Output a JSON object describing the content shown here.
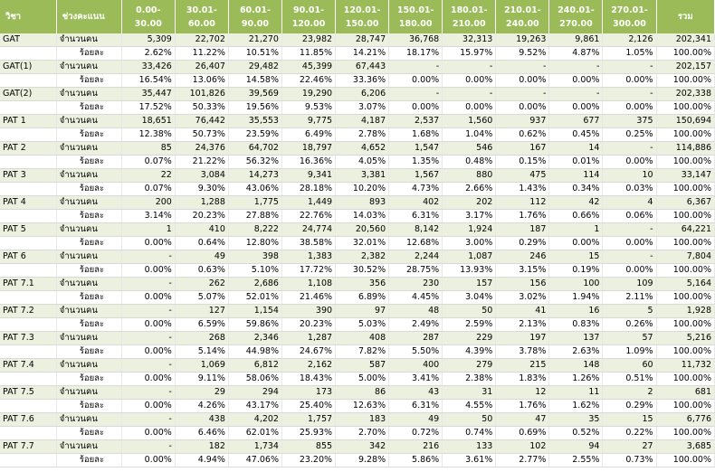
{
  "header": {
    "subject": "วิชา",
    "range": "ช่วงคะแนน",
    "bins": [
      "0.00-30.00",
      "30.01-60.00",
      "60.01-90.00",
      "90.01-\n120.00",
      "120.01-\n150.00",
      "150.01-\n180.00",
      "180.01-\n210.00",
      "210.01-\n240.00",
      "240.01-\n270.00",
      "270.01-\n300.00"
    ],
    "total": "รวม"
  },
  "labels": {
    "count": "จำนวนคน",
    "percent": "ร้อยละ"
  },
  "rows": [
    {
      "subject": "GAT",
      "counts": [
        "5,309",
        "22,702",
        "21,270",
        "23,982",
        "28,747",
        "36,768",
        "32,313",
        "19,263",
        "9,861",
        "2,126"
      ],
      "count_total": "202,341",
      "percents": [
        "2.62%",
        "11.22%",
        "10.51%",
        "11.85%",
        "14.21%",
        "18.17%",
        "15.97%",
        "9.52%",
        "4.87%",
        "1.05%"
      ],
      "percent_total": "100.00%"
    },
    {
      "subject": "GAT(1)",
      "counts": [
        "33,426",
        "26,407",
        "29,482",
        "45,399",
        "67,443",
        "-",
        "-",
        "-",
        "-",
        "-"
      ],
      "count_total": "202,157",
      "percents": [
        "16.54%",
        "13.06%",
        "14.58%",
        "22.46%",
        "33.36%",
        "0.00%",
        "0.00%",
        "0.00%",
        "0.00%",
        "0.00%"
      ],
      "percent_total": "100.00%"
    },
    {
      "subject": "GAT(2)",
      "counts": [
        "35,447",
        "101,826",
        "39,569",
        "19,290",
        "6,206",
        "-",
        "-",
        "-",
        "-",
        "-"
      ],
      "count_total": "202,338",
      "percents": [
        "17.52%",
        "50.33%",
        "19.56%",
        "9.53%",
        "3.07%",
        "0.00%",
        "0.00%",
        "0.00%",
        "0.00%",
        "0.00%"
      ],
      "percent_total": "100.00%"
    },
    {
      "subject": "PAT 1",
      "counts": [
        "18,651",
        "76,442",
        "35,553",
        "9,775",
        "4,187",
        "2,537",
        "1,560",
        "937",
        "677",
        "375"
      ],
      "count_total": "150,694",
      "percents": [
        "12.38%",
        "50.73%",
        "23.59%",
        "6.49%",
        "2.78%",
        "1.68%",
        "1.04%",
        "0.62%",
        "0.45%",
        "0.25%"
      ],
      "percent_total": "100.00%"
    },
    {
      "subject": "PAT 2",
      "counts": [
        "85",
        "24,376",
        "64,702",
        "18,797",
        "4,652",
        "1,547",
        "546",
        "167",
        "14",
        "-"
      ],
      "count_total": "114,886",
      "percents": [
        "0.07%",
        "21.22%",
        "56.32%",
        "16.36%",
        "4.05%",
        "1.35%",
        "0.48%",
        "0.15%",
        "0.01%",
        "0.00%"
      ],
      "percent_total": "100.00%"
    },
    {
      "subject": "PAT 3",
      "counts": [
        "22",
        "3,084",
        "14,273",
        "9,341",
        "3,381",
        "1,567",
        "880",
        "475",
        "114",
        "10"
      ],
      "count_total": "33,147",
      "percents": [
        "0.07%",
        "9.30%",
        "43.06%",
        "28.18%",
        "10.20%",
        "4.73%",
        "2.66%",
        "1.43%",
        "0.34%",
        "0.03%"
      ],
      "percent_total": "100.00%"
    },
    {
      "subject": "PAT 4",
      "counts": [
        "200",
        "1,288",
        "1,775",
        "1,449",
        "893",
        "402",
        "202",
        "112",
        "42",
        "4"
      ],
      "count_total": "6,367",
      "percents": [
        "3.14%",
        "20.23%",
        "27.88%",
        "22.76%",
        "14.03%",
        "6.31%",
        "3.17%",
        "1.76%",
        "0.66%",
        "0.06%"
      ],
      "percent_total": "100.00%"
    },
    {
      "subject": "PAT 5",
      "counts": [
        "1",
        "410",
        "8,222",
        "24,774",
        "20,560",
        "8,142",
        "1,924",
        "187",
        "1",
        "-"
      ],
      "count_total": "64,221",
      "percents": [
        "0.00%",
        "0.64%",
        "12.80%",
        "38.58%",
        "32.01%",
        "12.68%",
        "3.00%",
        "0.29%",
        "0.00%",
        "0.00%"
      ],
      "percent_total": "100.00%"
    },
    {
      "subject": "PAT 6",
      "counts": [
        "-",
        "49",
        "398",
        "1,383",
        "2,382",
        "2,244",
        "1,087",
        "246",
        "15",
        "-"
      ],
      "count_total": "7,804",
      "percents": [
        "0.00%",
        "0.63%",
        "5.10%",
        "17.72%",
        "30.52%",
        "28.75%",
        "13.93%",
        "3.15%",
        "0.19%",
        "0.00%"
      ],
      "percent_total": "100.00%"
    },
    {
      "subject": "PAT 7.1",
      "counts": [
        "-",
        "262",
        "2,686",
        "1,108",
        "356",
        "230",
        "157",
        "156",
        "100",
        "109"
      ],
      "count_total": "5,164",
      "percents": [
        "0.00%",
        "5.07%",
        "52.01%",
        "21.46%",
        "6.89%",
        "4.45%",
        "3.04%",
        "3.02%",
        "1.94%",
        "2.11%"
      ],
      "percent_total": "100.00%"
    },
    {
      "subject": "PAT 7.2",
      "counts": [
        "-",
        "127",
        "1,154",
        "390",
        "97",
        "48",
        "50",
        "41",
        "16",
        "5"
      ],
      "count_total": "1,928",
      "percents": [
        "0.00%",
        "6.59%",
        "59.86%",
        "20.23%",
        "5.03%",
        "2.49%",
        "2.59%",
        "2.13%",
        "0.83%",
        "0.26%"
      ],
      "percent_total": "100.00%"
    },
    {
      "subject": "PAT 7.3",
      "counts": [
        "-",
        "268",
        "2,346",
        "1,287",
        "408",
        "287",
        "229",
        "197",
        "137",
        "57"
      ],
      "count_total": "5,216",
      "percents": [
        "0.00%",
        "5.14%",
        "44.98%",
        "24.67%",
        "7.82%",
        "5.50%",
        "4.39%",
        "3.78%",
        "2.63%",
        "1.09%"
      ],
      "percent_total": "100.00%"
    },
    {
      "subject": "PAT 7.4",
      "counts": [
        "-",
        "1,069",
        "6,812",
        "2,162",
        "587",
        "400",
        "279",
        "215",
        "148",
        "60"
      ],
      "count_total": "11,732",
      "percents": [
        "0.00%",
        "9.11%",
        "58.06%",
        "18.43%",
        "5.00%",
        "3.41%",
        "2.38%",
        "1.83%",
        "1.26%",
        "0.51%"
      ],
      "percent_total": "100.00%"
    },
    {
      "subject": "PAT 7.5",
      "counts": [
        "-",
        "29",
        "294",
        "173",
        "86",
        "43",
        "31",
        "12",
        "11",
        "2"
      ],
      "count_total": "681",
      "percents": [
        "0.00%",
        "4.26%",
        "43.17%",
        "25.40%",
        "12.63%",
        "6.31%",
        "4.55%",
        "1.76%",
        "1.62%",
        "0.29%"
      ],
      "percent_total": "100.00%"
    },
    {
      "subject": "PAT 7.6",
      "counts": [
        "-",
        "438",
        "4,202",
        "1,757",
        "183",
        "49",
        "50",
        "47",
        "35",
        "15"
      ],
      "count_total": "6,776",
      "percents": [
        "0.00%",
        "6.46%",
        "62.01%",
        "25.93%",
        "2.70%",
        "0.72%",
        "0.74%",
        "0.69%",
        "0.52%",
        "0.22%"
      ],
      "percent_total": "100.00%"
    },
    {
      "subject": "PAT 7.7",
      "counts": [
        "-",
        "182",
        "1,734",
        "855",
        "342",
        "216",
        "133",
        "102",
        "94",
        "27"
      ],
      "count_total": "3,685",
      "percents": [
        "0.00%",
        "4.94%",
        "47.06%",
        "23.20%",
        "9.28%",
        "5.86%",
        "3.61%",
        "2.77%",
        "2.55%",
        "0.73%"
      ],
      "percent_total": "100.00%"
    }
  ]
}
